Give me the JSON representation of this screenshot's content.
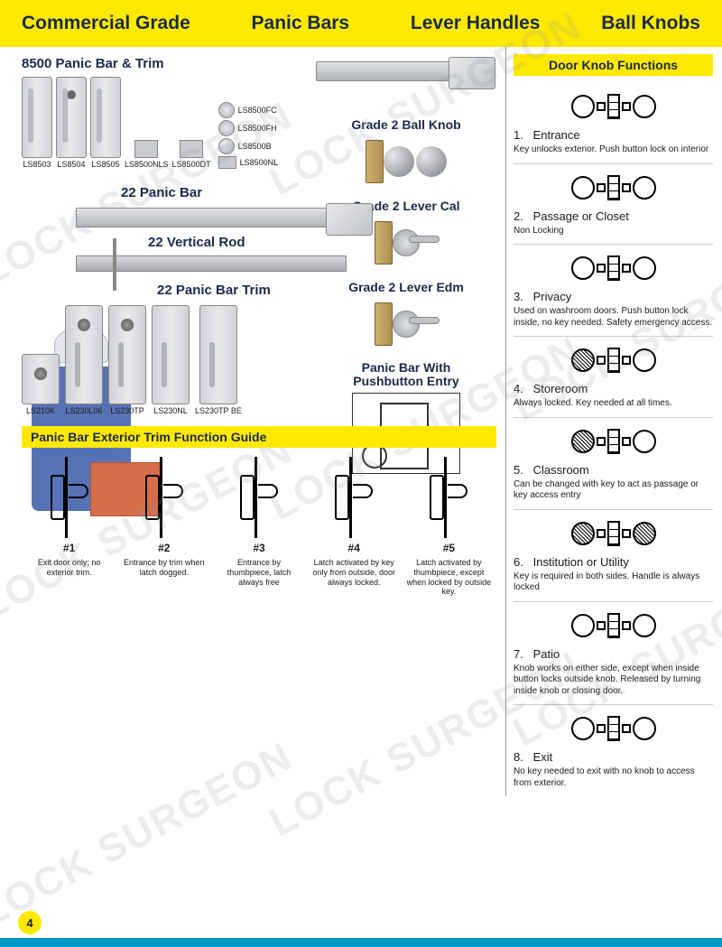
{
  "header": {
    "t1": "Commercial Grade",
    "t2": "Panic Bars",
    "t3": "Lever Handles",
    "t4": "Ball Knobs"
  },
  "colors": {
    "yellow": "#ffe900",
    "navy": "#1b2a4a",
    "blue_bar": "#0099cc"
  },
  "panic_8500": {
    "title": "8500 Panic Bar & Trim",
    "trims": [
      "LS8503",
      "LS8504",
      "LS8505",
      "LS8500NLS",
      "LS8500DT"
    ],
    "levers": [
      "LS8500FC",
      "LS8500FH",
      "LS8500B",
      "LS8500NL"
    ]
  },
  "panic_22": {
    "bar": "22 Panic Bar",
    "rod": "22 Vertical Rod",
    "trim_title": "22 Panic Bar Trim",
    "trims": [
      "LS210K",
      "LS230L06",
      "LS230TP",
      "LS230NL",
      "LS230TP BE"
    ]
  },
  "grade2": {
    "ball": "Grade 2 Ball Knob",
    "lever_cal": "Grade 2 Lever Cal",
    "lever_edm": "Grade 2 Lever Edm",
    "pushbtn_t1": "Panic Bar With",
    "pushbtn_t2": "Pushbutton Entry"
  },
  "trim_guide": {
    "banner": "Panic Bar Exterior Trim Function Guide",
    "items": [
      {
        "num": "#1",
        "desc": "Exit door only; no exterior trim."
      },
      {
        "num": "#2",
        "desc": "Entrance by trim when latch dogged."
      },
      {
        "num": "#3",
        "desc": "Entrance by thumbpiece, latch always free"
      },
      {
        "num": "#4",
        "desc": "Latch activated by key only from outside, door always locked."
      },
      {
        "num": "#5",
        "desc": "Latch activated by thumbpiece, except when locked by outside key."
      }
    ]
  },
  "knob_functions": {
    "header": "Door Knob Functions",
    "items": [
      {
        "num": "1.",
        "name": "Entrance",
        "desc": "Key unlocks exterior. Push button lock on interior",
        "left_hatch": false,
        "right_hatch": false
      },
      {
        "num": "2.",
        "name": "Passage or Closet",
        "desc": "Non Locking",
        "left_hatch": false,
        "right_hatch": false
      },
      {
        "num": "3.",
        "name": "Privacy",
        "desc": "Used on washroom doors. Push button lock inside, no key needed. Safety emergency access.",
        "left_hatch": false,
        "right_hatch": false
      },
      {
        "num": "4.",
        "name": "Storeroom",
        "desc": "Always locked. Key needed at all times.",
        "left_hatch": true,
        "right_hatch": false
      },
      {
        "num": "5.",
        "name": "Classroom",
        "desc": "Can be changed with key to act as passage or key access entry",
        "left_hatch": true,
        "right_hatch": false
      },
      {
        "num": "6.",
        "name": "Institution or Utility",
        "desc": "Key is required in both sides. Handle is always locked",
        "left_hatch": true,
        "right_hatch": true
      },
      {
        "num": "7.",
        "name": "Patio",
        "desc": "Knob works on either side, except when inside button locks outside knob. Released by turning inside knob or closing door.",
        "left_hatch": false,
        "right_hatch": false
      },
      {
        "num": "8.",
        "name": "Exit",
        "desc": "No key needed to exit with no knob to access from exterior.",
        "left_hatch": false,
        "right_hatch": false
      }
    ]
  },
  "page_num": "4",
  "watermark": "LOCK SURGEON"
}
